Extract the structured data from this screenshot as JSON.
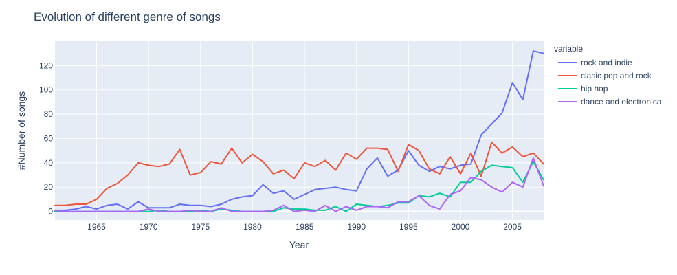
{
  "chart_data": {
    "type": "line",
    "title": "Evolution of different genre of songs",
    "xlabel": "Year",
    "ylabel": "#Number of songs",
    "legend_title": "variable",
    "legend_position": "right",
    "grid": true,
    "xlim": [
      1961,
      2008
    ],
    "ylim": [
      -7,
      140
    ],
    "x_ticks": [
      1965,
      1970,
      1975,
      1980,
      1985,
      1990,
      1995,
      2000,
      2005
    ],
    "y_ticks": [
      0,
      20,
      40,
      60,
      80,
      100,
      120
    ],
    "x": [
      1961,
      1962,
      1963,
      1964,
      1965,
      1966,
      1967,
      1968,
      1969,
      1970,
      1971,
      1972,
      1973,
      1974,
      1975,
      1976,
      1977,
      1978,
      1979,
      1980,
      1981,
      1982,
      1983,
      1984,
      1985,
      1986,
      1987,
      1988,
      1989,
      1990,
      1991,
      1992,
      1993,
      1994,
      1995,
      1996,
      1997,
      1998,
      1999,
      2000,
      2001,
      2002,
      2003,
      2004,
      2005,
      2006,
      2007,
      2008
    ],
    "series": [
      {
        "name": "rock and indie",
        "color": "#636efa",
        "values": [
          1,
          1,
          2,
          4,
          2,
          5,
          6,
          2,
          8,
          3,
          3,
          3,
          6,
          5,
          5,
          4,
          6,
          10,
          12,
          13,
          22,
          15,
          17,
          10,
          14,
          18,
          19,
          20,
          18,
          17,
          35,
          44,
          29,
          34,
          50,
          38,
          33,
          37,
          35,
          38,
          39,
          63,
          72,
          81,
          106,
          92,
          132,
          130
        ]
      },
      {
        "name": "clasic pop and rock",
        "color": "#ef553b",
        "values": [
          5,
          5,
          6,
          6,
          10,
          19,
          23,
          30,
          40,
          38,
          37,
          39,
          51,
          30,
          32,
          41,
          39,
          52,
          40,
          47,
          41,
          31,
          34,
          27,
          40,
          37,
          42,
          34,
          48,
          43,
          52,
          52,
          51,
          33,
          55,
          50,
          35,
          31,
          45,
          31,
          48,
          29,
          57,
          48,
          53,
          45,
          48,
          39
        ]
      },
      {
        "name": "hip hop",
        "color": "#00cc96",
        "values": [
          0,
          0,
          0,
          0,
          0,
          0,
          0,
          0,
          0,
          0,
          1,
          0,
          0,
          0,
          1,
          0,
          2,
          1,
          0,
          0,
          0,
          0,
          3,
          2,
          2,
          1,
          1,
          4,
          0,
          6,
          5,
          4,
          5,
          7,
          7,
          13,
          12,
          15,
          12,
          24,
          24,
          33,
          38,
          37,
          36,
          24,
          41,
          26
        ]
      },
      {
        "name": "dance and electronica",
        "color": "#ab63fa",
        "values": [
          1,
          0,
          0,
          0,
          0,
          0,
          0,
          0,
          0,
          2,
          0,
          0,
          0,
          1,
          0,
          0,
          3,
          0,
          0,
          0,
          0,
          1,
          5,
          0,
          1,
          0,
          5,
          0,
          4,
          1,
          4,
          4,
          3,
          8,
          8,
          13,
          5,
          2,
          14,
          17,
          28,
          26,
          20,
          16,
          24,
          20,
          44,
          21
        ]
      }
    ]
  }
}
